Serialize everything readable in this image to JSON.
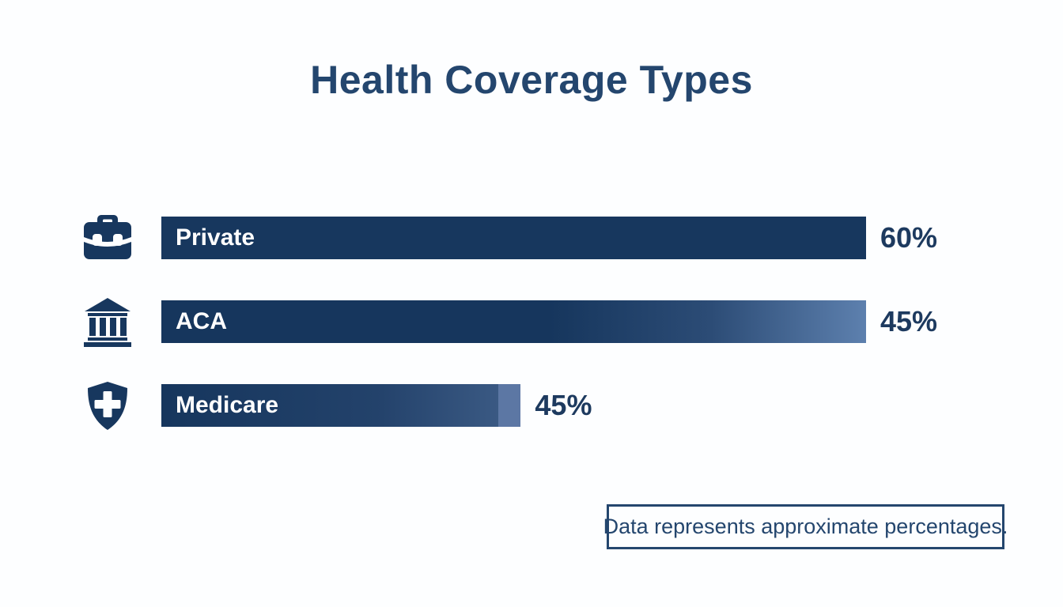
{
  "title": "Health Coverage Types",
  "rows": [
    {
      "label": "Private",
      "value_label": "60%",
      "icon": "briefcase-icon"
    },
    {
      "label": "ACA",
      "value_label": "45%",
      "icon": "bank-icon"
    },
    {
      "label": "Medicare",
      "value_label": "45%",
      "icon": "shield-cross-icon"
    }
  ],
  "footnote": "Data represents approximate percentages.",
  "colors": {
    "bar_navy": "#17375e",
    "bar_gradient_end": "#5d80ae",
    "medicare_end_cap": "#5c77a4",
    "title_text": "#24466e",
    "value_text": "#1d3a5f",
    "background": "#fdfeff"
  },
  "chart_data": {
    "type": "bar",
    "orientation": "horizontal",
    "title": "Health Coverage Types",
    "categories": [
      "Private",
      "ACA",
      "Medicare"
    ],
    "values": [
      60,
      45,
      45
    ],
    "unit": "percent",
    "data_labels": [
      "60%",
      "45%",
      "45%"
    ],
    "bar_render_widths_pct": [
      100,
      100,
      51
    ],
    "icons": [
      "briefcase-icon",
      "bank-icon",
      "shield-cross-icon"
    ],
    "legend": false,
    "axes_shown": false,
    "gridlines": false,
    "annotations": [
      "Data represents approximate percentages."
    ]
  }
}
